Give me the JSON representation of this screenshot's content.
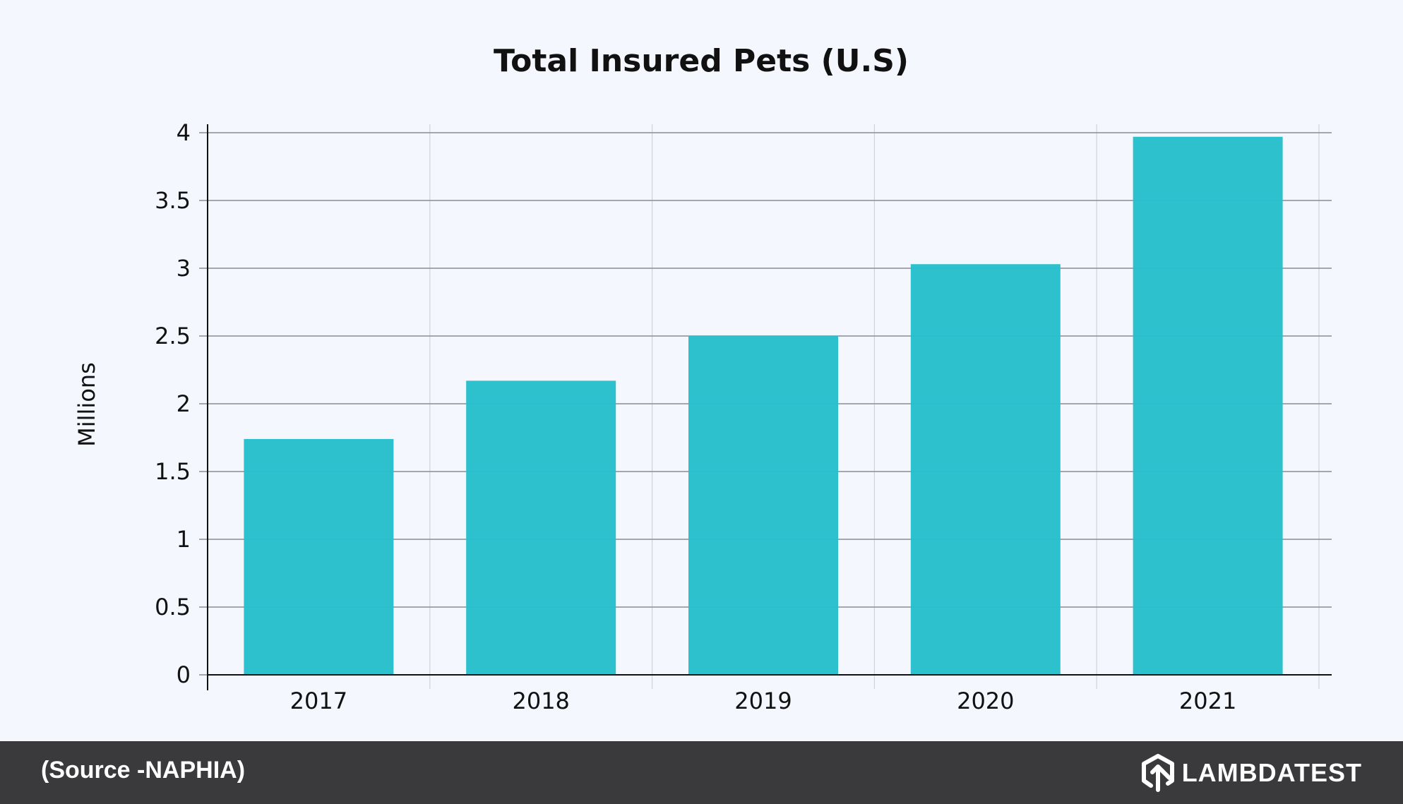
{
  "chart_data": {
    "type": "bar",
    "title": "Total Insured Pets (U.S)",
    "xlabel": "",
    "ylabel": "Millions",
    "categories": [
      "2017",
      "2018",
      "2019",
      "2020",
      "2021"
    ],
    "values": [
      1.74,
      2.17,
      2.5,
      3.03,
      3.97
    ],
    "ylim": [
      0,
      4
    ],
    "yticks": [
      "0",
      "0.5",
      "1",
      "1.5",
      "2",
      "2.5",
      "3",
      "3.5",
      "4"
    ],
    "grid": true,
    "bar_color": "#29bfcc"
  },
  "footer": {
    "source": "(Source -NAPHIA)",
    "logo_text": "LAMBDATEST",
    "background": "#3a3a3c"
  }
}
